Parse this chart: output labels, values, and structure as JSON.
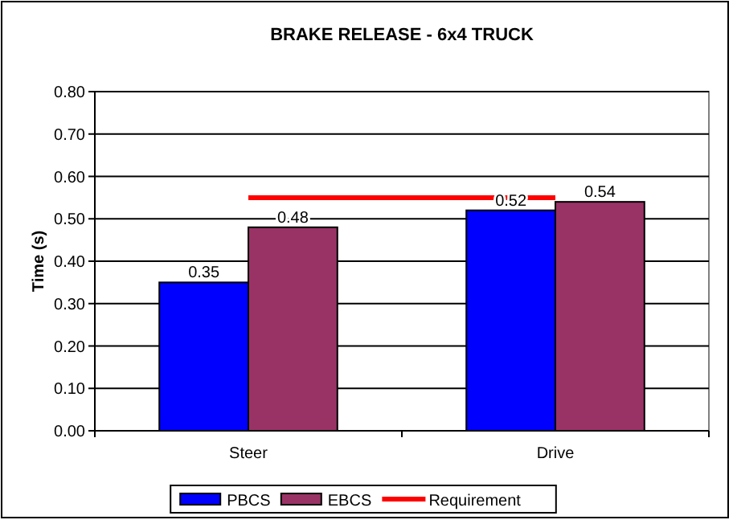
{
  "chart_data": {
    "type": "bar",
    "title": "BRAKE RELEASE - 6x4 TRUCK",
    "ylabel": "Time (s)",
    "categories": [
      "Steer",
      "Drive"
    ],
    "series": [
      {
        "name": "PBCS",
        "color": "#0000ff",
        "values": [
          0.35,
          0.52
        ],
        "value_labels": [
          "0.35",
          "0.52"
        ]
      },
      {
        "name": "EBCS",
        "color": "#993366",
        "values": [
          0.48,
          0.54
        ],
        "value_labels": [
          "0.48",
          "0.54"
        ]
      },
      {
        "name": "Requirement",
        "type": "line",
        "color": "#ff0000",
        "values": [
          0.55,
          0.55
        ]
      }
    ],
    "ylim": [
      0,
      0.8
    ],
    "yticks": [
      "0.00",
      "0.10",
      "0.20",
      "0.30",
      "0.40",
      "0.50",
      "0.60",
      "0.70",
      "0.80"
    ],
    "grid": "y",
    "legend": "bottom"
  }
}
